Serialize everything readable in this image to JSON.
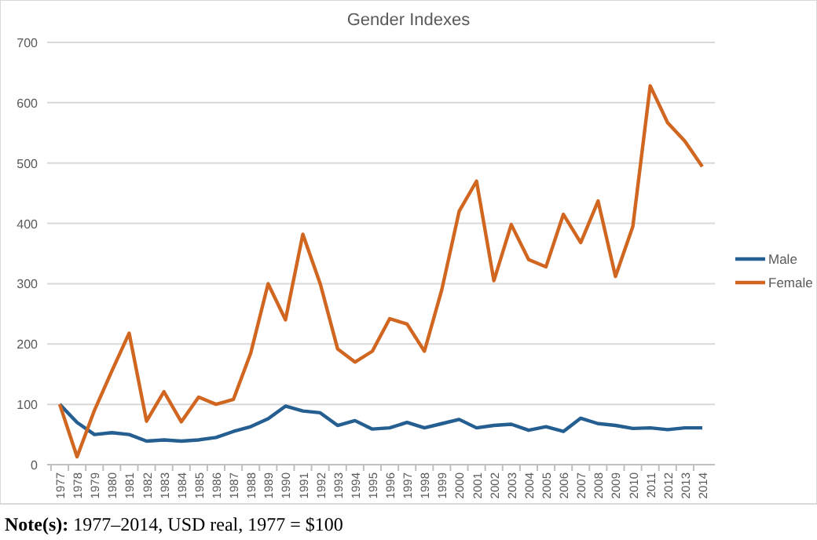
{
  "chart_data": {
    "type": "line",
    "title": "Gender Indexes",
    "categories": [
      "1977",
      "1978",
      "1979",
      "1980",
      "1981",
      "1982",
      "1983",
      "1984",
      "1985",
      "1986",
      "1987",
      "1988",
      "1989",
      "1990",
      "1991",
      "1992",
      "1993",
      "1994",
      "1995",
      "1996",
      "1997",
      "1998",
      "1999",
      "2000",
      "2001",
      "2002",
      "2003",
      "2004",
      "2005",
      "2006",
      "2007",
      "2008",
      "2009",
      "2010",
      "2011",
      "2012",
      "2013",
      "2014"
    ],
    "series": [
      {
        "name": "Male",
        "color": "#255e91",
        "values": [
          100,
          70,
          50,
          53,
          50,
          39,
          41,
          39,
          41,
          45,
          55,
          63,
          76,
          97,
          89,
          86,
          65,
          73,
          59,
          61,
          70,
          61,
          68,
          75,
          61,
          65,
          67,
          57,
          63,
          55,
          77,
          68,
          65,
          60,
          61,
          58,
          61,
          61
        ]
      },
      {
        "name": "Female",
        "color": "#d0661f",
        "values": [
          100,
          13,
          90,
          155,
          218,
          72,
          121,
          71,
          112,
          100,
          108,
          185,
          300,
          240,
          382,
          300,
          192,
          170,
          188,
          242,
          233,
          188,
          290,
          420,
          470,
          305,
          398,
          340,
          328,
          415,
          368,
          437,
          312,
          395,
          628,
          567,
          536,
          494
        ]
      }
    ],
    "ylim": [
      0,
      700
    ],
    "yticks": [
      0,
      100,
      200,
      300,
      400,
      500,
      600,
      700
    ],
    "grid": "y",
    "legend": "right",
    "marker": "none",
    "line_style": "solid",
    "annotations": [
      "Note(s): 1977–2014, USD real, 1977 = $100"
    ]
  }
}
